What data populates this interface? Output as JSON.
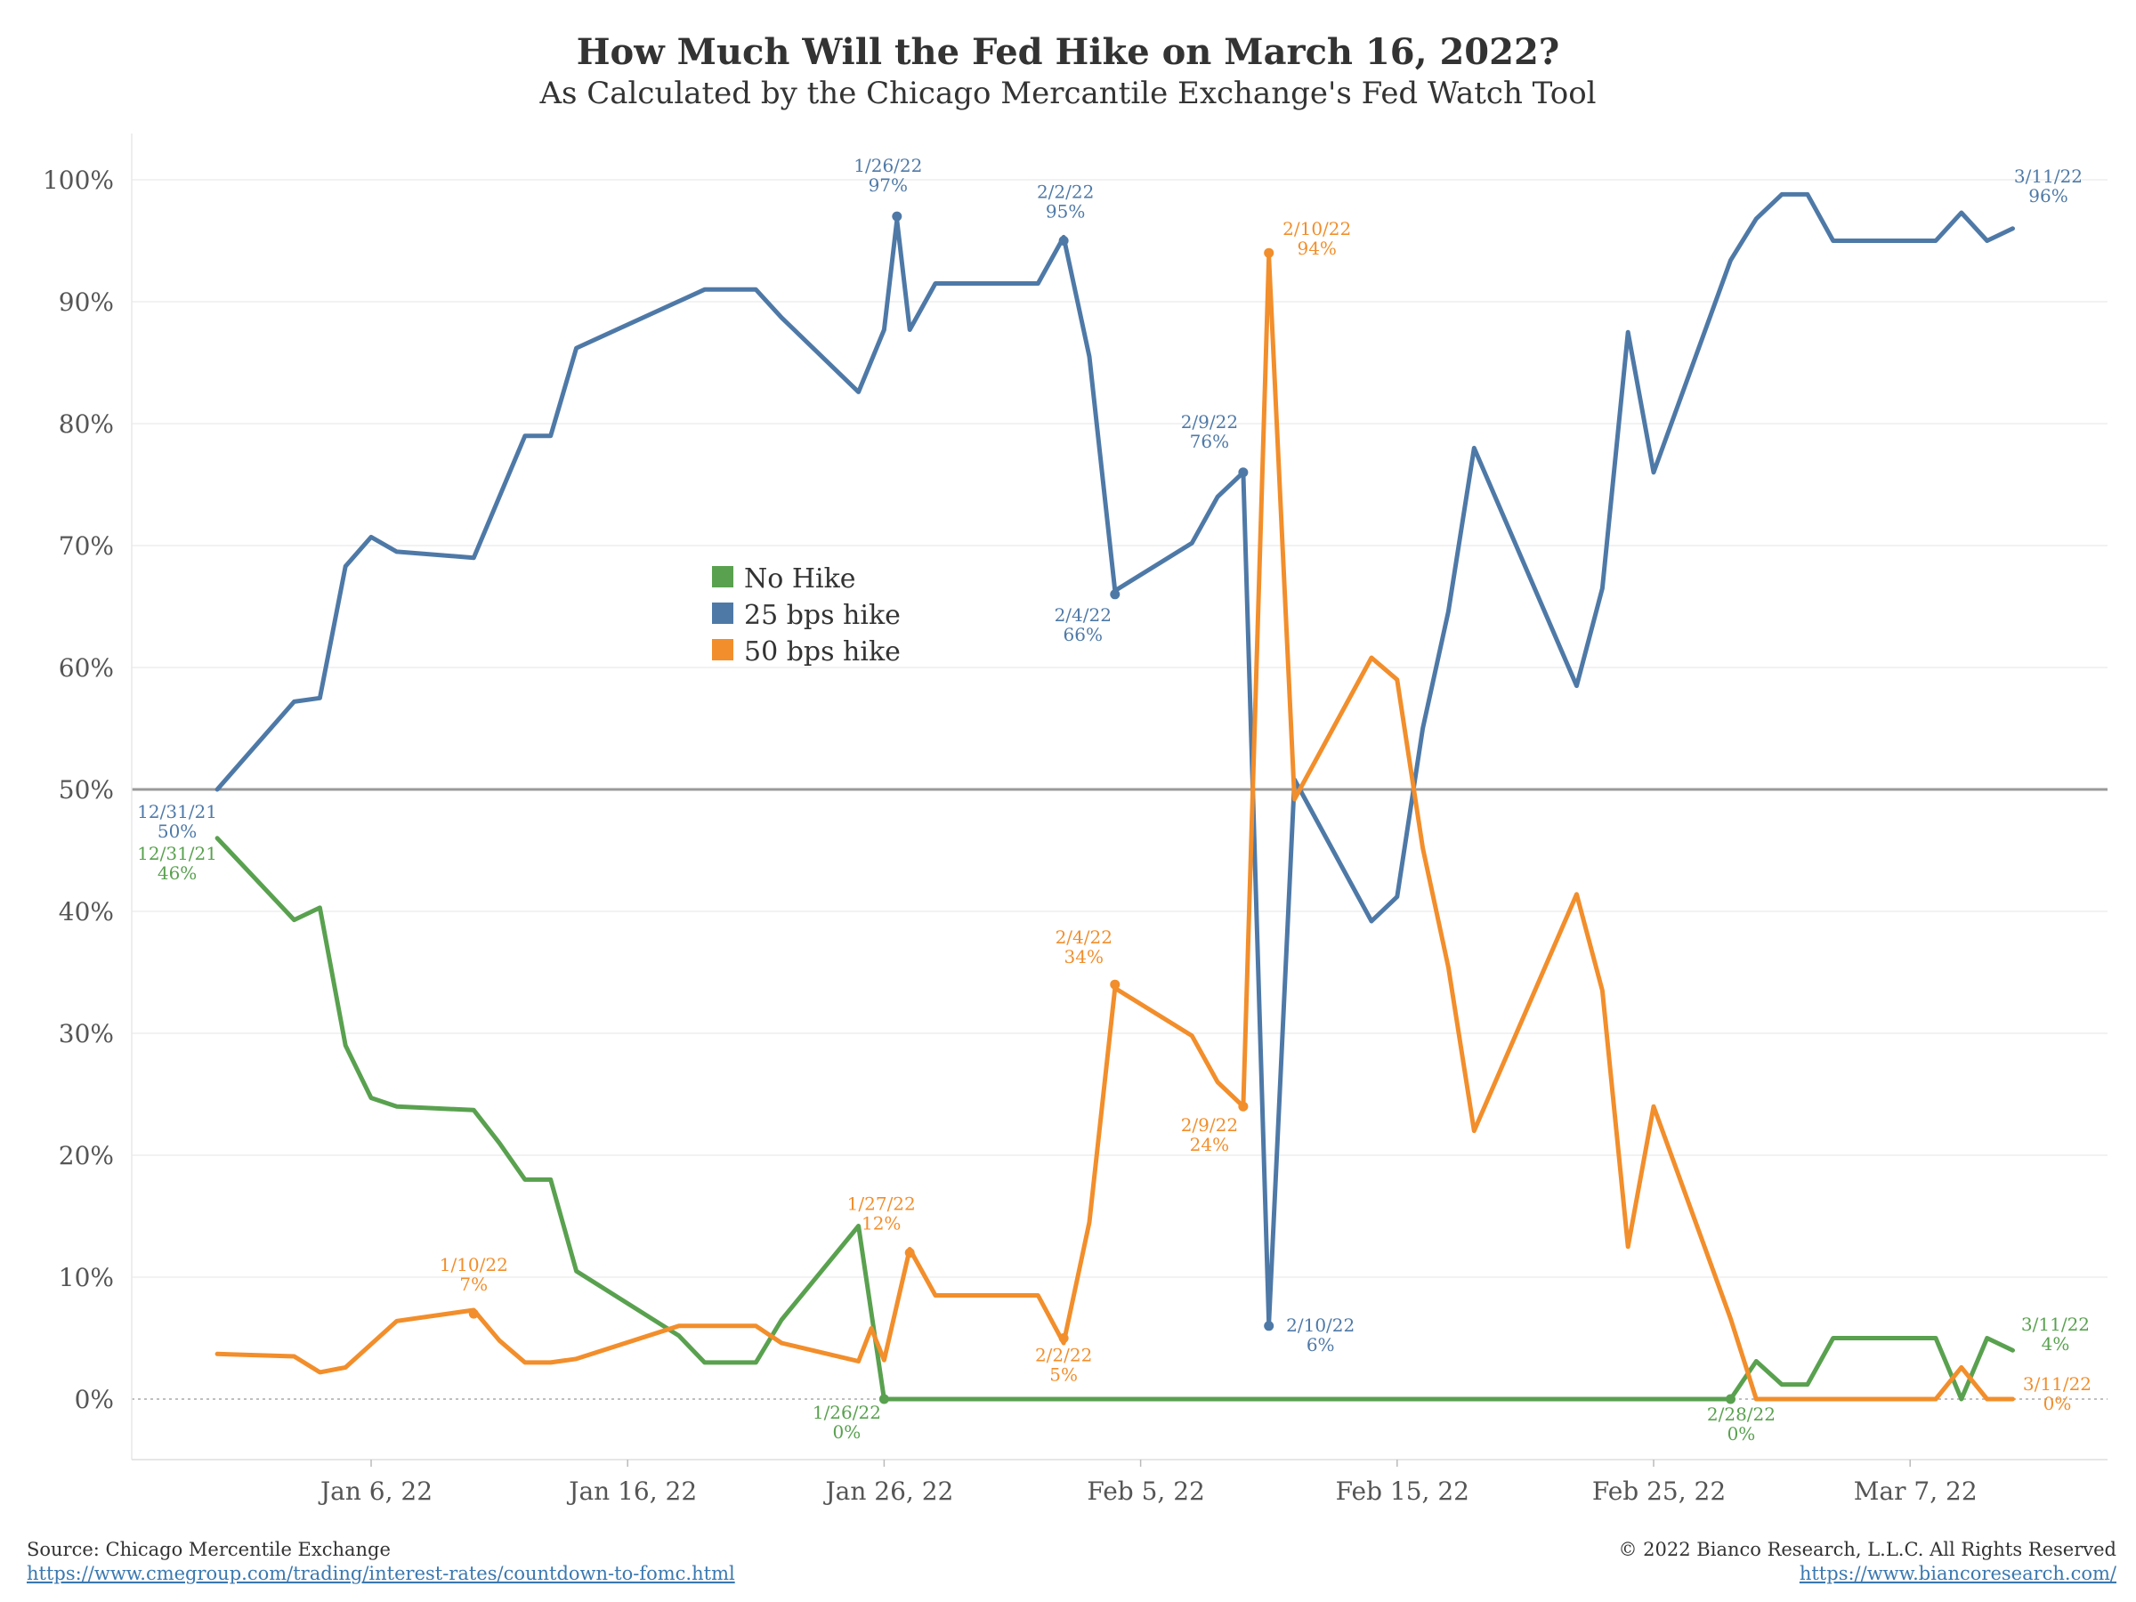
{
  "colors": {
    "no_hike": "#59a14f",
    "bps25": "#4e79a7",
    "bps50": "#f28e2b",
    "axis_line": "#999999",
    "grid": "#eeeeee"
  },
  "footer": {
    "source": "Source: Chicago Mercentile Exchange",
    "source_url": "https://www.cmegroup.com/trading/interest-rates/countdown-to-fomc.html",
    "copyright": "© 2022 Bianco Research, L.L.C. All Rights Reserved",
    "site_url": "https://www.biancoresearch.com/"
  },
  "chart_data": {
    "type": "line",
    "title": "How Much Will the Fed Hike on March 16, 2022?",
    "subtitle": "As Calculated by the Chicago Mercantile Exchange's Fed Watch Tool",
    "xlabel": "",
    "ylabel": "",
    "xlim": [
      "2021-12-25",
      "2022-03-14"
    ],
    "ylim": [
      -5,
      102
    ],
    "y_ticks": [
      0,
      10,
      20,
      30,
      40,
      50,
      60,
      70,
      80,
      90,
      100
    ],
    "y_tick_labels": [
      "0%",
      "10%",
      "20%",
      "30%",
      "40%",
      "50%",
      "60%",
      "70%",
      "80%",
      "90%",
      "100%"
    ],
    "x_ticks": [
      "2022-01-06",
      "2022-01-16",
      "2022-01-26",
      "2022-02-05",
      "2022-02-15",
      "2022-02-25",
      "2022-03-07"
    ],
    "x_tick_labels": [
      "Jan 6, 22",
      "Jan 16, 22",
      "Jan 26, 22",
      "Feb 5, 22",
      "Feb 15, 22",
      "Feb 25, 22",
      "Mar 7, 22"
    ],
    "reference_line": 50,
    "grid": true,
    "legend_position": "center-left",
    "legend": [
      "No Hike",
      "25 bps hike",
      "50 bps hike"
    ],
    "series": [
      {
        "name": "No Hike",
        "color": "#59a14f",
        "points": [
          [
            "2021-12-31",
            46
          ],
          [
            "2022-01-03",
            39.3
          ],
          [
            "2022-01-04",
            40.3
          ],
          [
            "2022-01-05",
            29
          ],
          [
            "2022-01-06",
            24.7
          ],
          [
            "2022-01-07",
            24
          ],
          [
            "2022-01-10",
            23.7
          ],
          [
            "2022-01-11",
            21
          ],
          [
            "2022-01-12",
            18
          ],
          [
            "2022-01-13",
            18
          ],
          [
            "2022-01-14",
            10.5
          ],
          [
            "2022-01-18",
            5.2
          ],
          [
            "2022-01-19",
            3
          ],
          [
            "2022-01-21",
            3
          ],
          [
            "2022-01-22",
            6.5
          ],
          [
            "2022-01-25",
            14.2
          ],
          [
            "2022-01-26",
            0
          ],
          [
            "2022-01-27",
            0
          ],
          [
            "2022-02-25",
            0
          ],
          [
            "2022-02-28",
            0
          ],
          [
            "2022-03-01",
            3.1
          ],
          [
            "2022-03-02",
            1.2
          ],
          [
            "2022-03-03",
            1.2
          ],
          [
            "2022-03-04",
            5
          ],
          [
            "2022-03-08",
            5
          ],
          [
            "2022-03-09",
            0
          ],
          [
            "2022-03-10",
            5
          ],
          [
            "2022-03-11",
            4
          ]
        ]
      },
      {
        "name": "25 bps hike",
        "color": "#4e79a7",
        "points": [
          [
            "2021-12-31",
            50
          ],
          [
            "2022-01-03",
            57.2
          ],
          [
            "2022-01-04",
            57.5
          ],
          [
            "2022-01-05",
            68.3
          ],
          [
            "2022-01-06",
            70.7
          ],
          [
            "2022-01-07",
            69.5
          ],
          [
            "2022-01-10",
            69
          ],
          [
            "2022-01-12",
            79
          ],
          [
            "2022-01-13",
            79
          ],
          [
            "2022-01-14",
            86.2
          ],
          [
            "2022-01-19",
            91
          ],
          [
            "2022-01-21",
            91
          ],
          [
            "2022-01-22",
            88.7
          ],
          [
            "2022-01-25",
            82.6
          ],
          [
            "2022-01-26",
            87.7
          ],
          [
            "2022-01-26.5",
            96.7
          ],
          [
            "2022-01-27",
            87.7
          ],
          [
            "2022-01-28",
            91.5
          ],
          [
            "2022-02-01",
            91.5
          ],
          [
            "2022-02-02",
            95.3
          ],
          [
            "2022-02-03",
            85.5
          ],
          [
            "2022-02-04",
            66.3
          ],
          [
            "2022-02-07",
            70.2
          ],
          [
            "2022-02-08",
            74
          ],
          [
            "2022-02-09",
            76
          ],
          [
            "2022-02-10",
            6.2
          ],
          [
            "2022-02-11",
            50.8
          ],
          [
            "2022-02-14",
            39.2
          ],
          [
            "2022-02-15",
            41.2
          ],
          [
            "2022-02-16",
            55
          ],
          [
            "2022-02-17",
            64.6
          ],
          [
            "2022-02-18",
            78
          ],
          [
            "2022-02-22",
            58.5
          ],
          [
            "2022-02-23",
            66.5
          ],
          [
            "2022-02-24",
            87.5
          ],
          [
            "2022-02-25",
            76
          ],
          [
            "2022-02-28",
            93.4
          ],
          [
            "2022-03-01",
            96.8
          ],
          [
            "2022-03-02",
            98.8
          ],
          [
            "2022-03-03",
            98.8
          ],
          [
            "2022-03-04",
            95
          ],
          [
            "2022-03-08",
            95
          ],
          [
            "2022-03-09",
            97.3
          ],
          [
            "2022-03-10",
            95
          ],
          [
            "2022-03-11",
            96
          ]
        ]
      },
      {
        "name": "50 bps hike",
        "color": "#f28e2b",
        "points": [
          [
            "2021-12-31",
            3.7
          ],
          [
            "2022-01-03",
            3.5
          ],
          [
            "2022-01-04",
            2.2
          ],
          [
            "2022-01-05",
            2.6
          ],
          [
            "2022-01-07",
            6.4
          ],
          [
            "2022-01-10",
            7.3
          ],
          [
            "2022-01-11",
            4.8
          ],
          [
            "2022-01-12",
            3
          ],
          [
            "2022-01-13",
            3
          ],
          [
            "2022-01-14",
            3.3
          ],
          [
            "2022-01-18",
            6
          ],
          [
            "2022-01-19",
            6
          ],
          [
            "2022-01-21",
            6
          ],
          [
            "2022-01-22",
            4.6
          ],
          [
            "2022-01-25",
            3.1
          ],
          [
            "2022-01-25.5",
            5.8
          ],
          [
            "2022-01-26",
            3.2
          ],
          [
            "2022-01-27",
            12.3
          ],
          [
            "2022-01-28",
            8.5
          ],
          [
            "2022-02-01",
            8.5
          ],
          [
            "2022-02-02",
            4.6
          ],
          [
            "2022-02-03",
            14.5
          ],
          [
            "2022-02-04",
            33.7
          ],
          [
            "2022-02-07",
            29.8
          ],
          [
            "2022-02-08",
            26
          ],
          [
            "2022-02-09",
            24
          ],
          [
            "2022-02-10",
            93.7
          ],
          [
            "2022-02-11",
            49.2
          ],
          [
            "2022-02-14",
            60.8
          ],
          [
            "2022-02-15",
            59
          ],
          [
            "2022-02-16",
            45.2
          ],
          [
            "2022-02-17",
            35.4
          ],
          [
            "2022-02-18",
            22
          ],
          [
            "2022-02-22",
            41.4
          ],
          [
            "2022-02-23",
            33.5
          ],
          [
            "2022-02-24",
            12.5
          ],
          [
            "2022-02-25",
            24
          ],
          [
            "2022-02-28",
            6.6
          ],
          [
            "2022-03-01",
            0
          ],
          [
            "2022-03-08",
            0
          ],
          [
            "2022-03-09",
            2.6
          ],
          [
            "2022-03-10",
            0
          ],
          [
            "2022-03-11",
            0
          ]
        ]
      }
    ],
    "annotations": [
      {
        "series": "25 bps hike",
        "date": "2021-12-31",
        "value": 50,
        "lines": [
          "12/31/21",
          "50%"
        ],
        "dot": false
      },
      {
        "series": "No Hike",
        "date": "2021-12-31",
        "value": 46,
        "lines": [
          "12/31/21",
          "46%"
        ],
        "dot": false
      },
      {
        "series": "25 bps hike",
        "date": "2022-01-26.5",
        "value": 97,
        "lines": [
          "1/26/22",
          "97%"
        ],
        "dot": true
      },
      {
        "series": "25 bps hike",
        "date": "2022-02-02",
        "value": 95,
        "lines": [
          "2/2/22",
          "95%"
        ],
        "dot": true
      },
      {
        "series": "25 bps hike",
        "date": "2022-02-09",
        "value": 76,
        "lines": [
          "2/9/22",
          "76%"
        ],
        "dot": true
      },
      {
        "series": "25 bps hike",
        "date": "2022-02-04",
        "value": 66,
        "lines": [
          "2/4/22",
          "66%"
        ],
        "dot": true
      },
      {
        "series": "25 bps hike",
        "date": "2022-02-10",
        "value": 6,
        "lines": [
          "2/10/22",
          "6%"
        ],
        "dot": true
      },
      {
        "series": "25 bps hike",
        "date": "2022-03-11",
        "value": 96,
        "lines": [
          "3/11/22",
          "96%"
        ],
        "dot": false
      },
      {
        "series": "50 bps hike",
        "date": "2022-02-10",
        "value": 94,
        "lines": [
          "2/10/22",
          "94%"
        ],
        "dot": true
      },
      {
        "series": "50 bps hike",
        "date": "2022-02-04",
        "value": 34,
        "lines": [
          "2/4/22",
          "34%"
        ],
        "dot": true
      },
      {
        "series": "50 bps hike",
        "date": "2022-02-09",
        "value": 24,
        "lines": [
          "2/9/22",
          "24%"
        ],
        "dot": true
      },
      {
        "series": "50 bps hike",
        "date": "2022-01-27",
        "value": 12,
        "lines": [
          "1/27/22",
          "12%"
        ],
        "dot": true
      },
      {
        "series": "50 bps hike",
        "date": "2022-01-10",
        "value": 7,
        "lines": [
          "1/10/22",
          "7%"
        ],
        "dot": true
      },
      {
        "series": "50 bps hike",
        "date": "2022-02-02",
        "value": 5,
        "lines": [
          "2/2/22",
          "5%"
        ],
        "dot": true
      },
      {
        "series": "50 bps hike",
        "date": "2022-03-11",
        "value": 0,
        "lines": [
          "3/11/22",
          "0%"
        ],
        "dot": false
      },
      {
        "series": "No Hike",
        "date": "2022-01-26",
        "value": 0,
        "lines": [
          "1/26/22",
          "0%"
        ],
        "dot": true
      },
      {
        "series": "No Hike",
        "date": "2022-02-28",
        "value": 0,
        "lines": [
          "2/28/22",
          "0%"
        ],
        "dot": true
      },
      {
        "series": "No Hike",
        "date": "2022-03-11",
        "value": 4,
        "lines": [
          "3/11/22",
          "4%"
        ],
        "dot": false
      }
    ]
  }
}
